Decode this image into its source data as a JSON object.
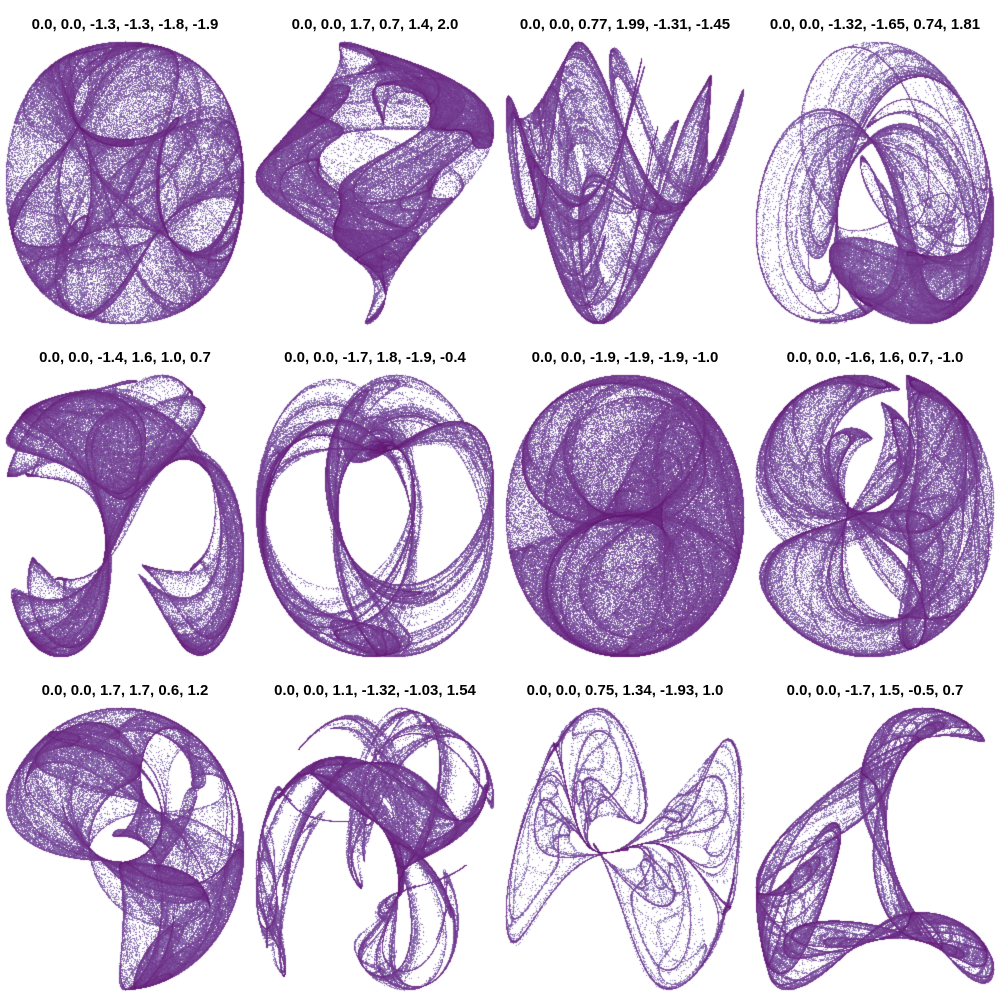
{
  "figure": {
    "colors": {
      "sparse": "#b4c8e4",
      "mid": "#7a4a9a",
      "dense": "#5e0d6c",
      "background": "#ffffff"
    },
    "panels": [
      {
        "title": "0.0, 0.0, -1.3, -1.3, -1.8, -1.9",
        "params": [
          -1.3,
          -1.3,
          -1.8,
          -1.9
        ]
      },
      {
        "title": "0.0, 0.0, 1.7, 0.7, 1.4, 2.0",
        "params": [
          1.7,
          0.7,
          1.4,
          2.0
        ]
      },
      {
        "title": "0.0, 0.0, 0.77, 1.99, -1.31, -1.45",
        "params": [
          0.77,
          1.99,
          -1.31,
          -1.45
        ]
      },
      {
        "title": "0.0, 0.0, -1.32, -1.65, 0.74, 1.81",
        "params": [
          -1.32,
          -1.65,
          0.74,
          1.81
        ]
      },
      {
        "title": "0.0, 0.0, -1.4, 1.6, 1.0, 0.7",
        "params": [
          -1.4,
          1.6,
          1.0,
          0.7
        ]
      },
      {
        "title": "0.0, 0.0, -1.7, 1.8, -1.9, -0.4",
        "params": [
          -1.7,
          1.8,
          -1.9,
          -0.4
        ]
      },
      {
        "title": "0.0, 0.0, -1.9, -1.9, -1.9, -1.0",
        "params": [
          -1.9,
          -1.9,
          -1.9,
          -1.0
        ]
      },
      {
        "title": "0.0, 0.0, -1.6, 1.6, 0.7, -1.0",
        "params": [
          -1.6,
          1.6,
          0.7,
          -1.0
        ]
      },
      {
        "title": "0.0, 0.0, 1.7, 1.7, 0.6, 1.2",
        "params": [
          1.7,
          1.7,
          0.6,
          1.2
        ]
      },
      {
        "title": "0.0, 0.0, 1.1, -1.32, -1.03, 1.54",
        "params": [
          1.1,
          -1.32,
          -1.03,
          1.54
        ]
      },
      {
        "title": "0.0, 0.0, 0.75, 1.34, -1.93, 1.0",
        "params": [
          0.75,
          1.34,
          -1.93,
          1.0
        ]
      },
      {
        "title": "0.0, 0.0, -1.7, 1.5, -0.5, 0.7",
        "params": [
          -1.7,
          1.5,
          -0.5,
          0.7
        ]
      }
    ]
  }
}
